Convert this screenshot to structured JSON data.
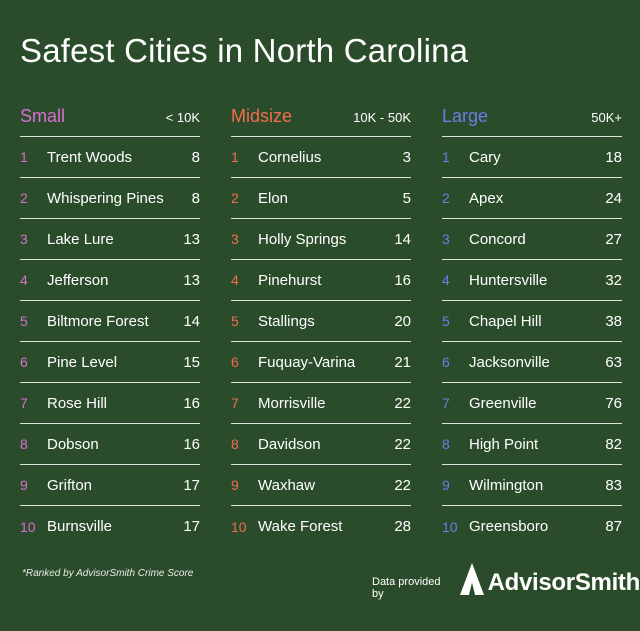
{
  "title": "Safest Cities in North Carolina",
  "colors": {
    "small": "#d86fd0",
    "midsize": "#f26c4f",
    "large": "#6f7be6",
    "background": "#2b4c2b"
  },
  "columns": [
    {
      "title": "Small",
      "range": "< 10K",
      "rows": [
        {
          "rank": "1",
          "city": "Trent Woods",
          "score": "8"
        },
        {
          "rank": "2",
          "city": "Whispering Pines",
          "score": "8"
        },
        {
          "rank": "3",
          "city": "Lake Lure",
          "score": "13"
        },
        {
          "rank": "4",
          "city": "Jefferson",
          "score": "13"
        },
        {
          "rank": "5",
          "city": "Biltmore Forest",
          "score": "14"
        },
        {
          "rank": "6",
          "city": "Pine Level",
          "score": "15"
        },
        {
          "rank": "7",
          "city": "Rose Hill",
          "score": "16"
        },
        {
          "rank": "8",
          "city": "Dobson",
          "score": "16"
        },
        {
          "rank": "9",
          "city": "Grifton",
          "score": "17"
        },
        {
          "rank": "10",
          "city": "Burnsville",
          "score": "17"
        }
      ]
    },
    {
      "title": "Midsize",
      "range": "10K - 50K",
      "rows": [
        {
          "rank": "1",
          "city": "Cornelius",
          "score": "3"
        },
        {
          "rank": "2",
          "city": "Elon",
          "score": "5"
        },
        {
          "rank": "3",
          "city": "Holly Springs",
          "score": "14"
        },
        {
          "rank": "4",
          "city": "Pinehurst",
          "score": "16"
        },
        {
          "rank": "5",
          "city": "Stallings",
          "score": "20"
        },
        {
          "rank": "6",
          "city": "Fuquay-Varina",
          "score": "21"
        },
        {
          "rank": "7",
          "city": "Morrisville",
          "score": "22"
        },
        {
          "rank": "8",
          "city": "Davidson",
          "score": "22"
        },
        {
          "rank": "9",
          "city": "Waxhaw",
          "score": "22"
        },
        {
          "rank": "10",
          "city": "Wake Forest",
          "score": "28"
        }
      ]
    },
    {
      "title": "Large",
      "range": "50K+",
      "rows": [
        {
          "rank": "1",
          "city": "Cary",
          "score": "18"
        },
        {
          "rank": "2",
          "city": "Apex",
          "score": "24"
        },
        {
          "rank": "3",
          "city": "Concord",
          "score": "27"
        },
        {
          "rank": "4",
          "city": "Huntersville",
          "score": "32"
        },
        {
          "rank": "5",
          "city": "Chapel Hill",
          "score": "38"
        },
        {
          "rank": "6",
          "city": "Jacksonville",
          "score": "63"
        },
        {
          "rank": "7",
          "city": "Greenville",
          "score": "76"
        },
        {
          "rank": "8",
          "city": "High Point",
          "score": "82"
        },
        {
          "rank": "9",
          "city": "Wilmington",
          "score": "83"
        },
        {
          "rank": "10",
          "city": "Greensboro",
          "score": "87"
        }
      ]
    }
  ],
  "footnote": "*Ranked by AdvisorSmith Crime Score",
  "credit": {
    "text": "Data provided by",
    "logo_text": "AdvisorSmith",
    "logo_icon": "advisorsmith-logo-icon"
  }
}
